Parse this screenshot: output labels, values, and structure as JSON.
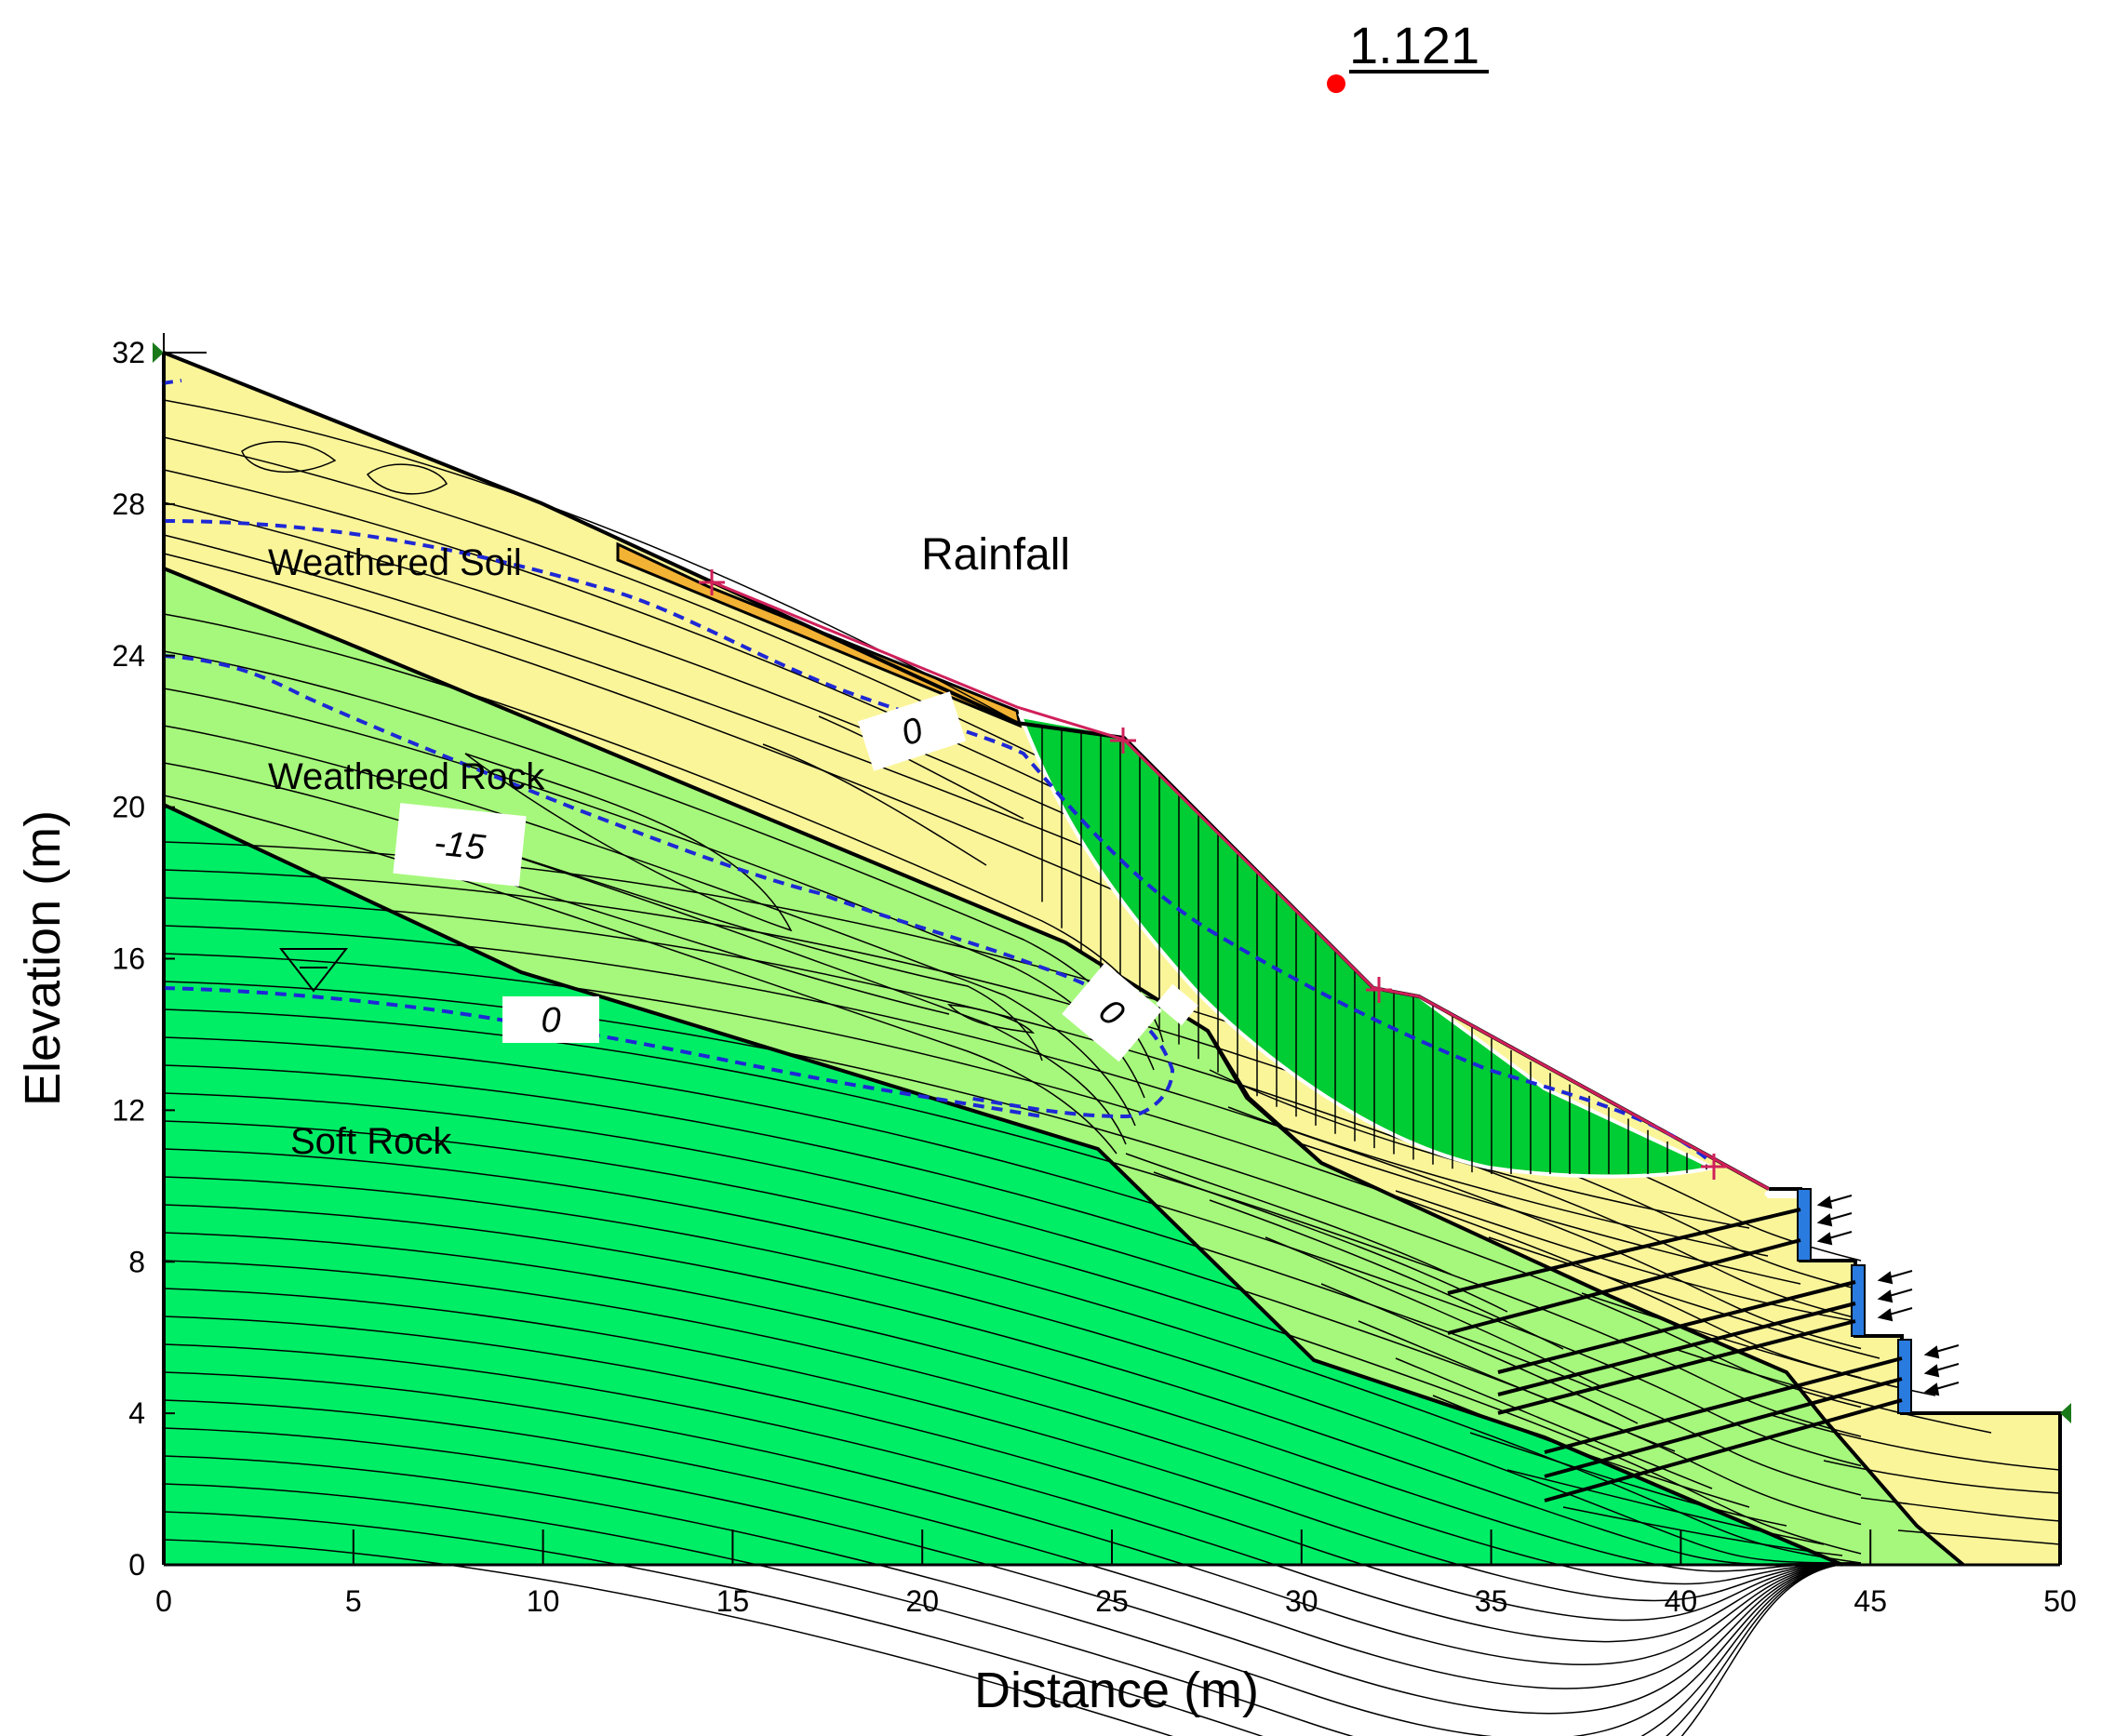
{
  "factor_of_safety": "1.121",
  "labels": {
    "rainfall": "Rainfall",
    "weathered_soil": "Weathered Soil",
    "weathered_rock": "Weathered Rock",
    "soft_rock": "Soft Rock"
  },
  "contour_tags": {
    "upper_zero": "0",
    "mid_zero": "0",
    "lower_zero": "0",
    "minus_fifteen": "-15"
  },
  "axes": {
    "x_title": "Distance (m)",
    "y_title": "Elevation (m)",
    "x_ticks": [
      "0",
      "5",
      "10",
      "15",
      "20",
      "25",
      "30",
      "35",
      "40",
      "45",
      "50"
    ],
    "y_ticks": [
      "0",
      "4",
      "8",
      "12",
      "16",
      "20",
      "24",
      "28",
      "32"
    ],
    "x_range": [
      0,
      50
    ],
    "y_range": [
      0,
      32
    ]
  },
  "colors": {
    "weathered_soil": "#fbf59a",
    "weathered_rock": "#a6f87c",
    "soft_rock": "#00ee66",
    "sliding_mass": "#00cc33",
    "surface_layer": "#f2b233",
    "phreatic_line": "#1e28d6",
    "slope_surface": "#d0205a",
    "retaining_wall": "#2a7be0",
    "critical_center": "#ff0000"
  }
}
